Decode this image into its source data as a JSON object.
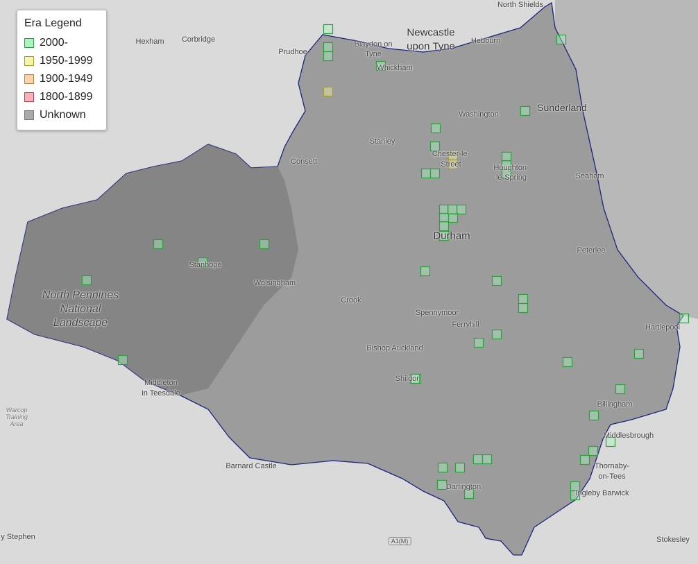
{
  "legend": {
    "title": "Era Legend",
    "items": [
      {
        "label": "2000-",
        "fill": "#a8f5c0",
        "stroke": "#2e9e3e"
      },
      {
        "label": "1950-1999",
        "fill": "#f5f5a8",
        "stroke": "#9e9e2e"
      },
      {
        "label": "1900-1949",
        "fill": "#fcd2a8",
        "stroke": "#b8804a"
      },
      {
        "label": "1800-1899",
        "fill": "#fbb0b8",
        "stroke": "#b04050"
      },
      {
        "label": "Unknown",
        "fill": "#aaaaaa",
        "stroke": "#777777"
      }
    ]
  },
  "colors": {
    "boundary": "#1a237e",
    "region": "#9a9a9a",
    "basemap": "#d9d9d9",
    "sea": "#b5b5b5"
  },
  "places": [
    "North Shields",
    "Newcastle",
    "upon Tyne",
    "Hexham",
    "Corbridge",
    "Prudhoe",
    "Blaydon on",
    "Tyne",
    "Whickham",
    "Hebburn",
    "Sunderland",
    "Washington",
    "Stanley",
    "Chester-le-",
    "Street",
    "Consett",
    "Houghton-",
    "le-Spring",
    "Seaham",
    "Durham",
    "Peterlee",
    "Stanhope",
    "Wolsingham",
    "Crook",
    "Spennymoor",
    "Ferryhill",
    "Hartlepool",
    "Bishop Auckland",
    "Shildon",
    "Billingham",
    "Middleton",
    "in Teesdale",
    "Middlesbrough",
    "Thornaby-",
    "on-Tees",
    "Barnard Castle",
    "Darlington",
    "Ingleby Barwick",
    "Stokesley",
    "y Stephen"
  ],
  "park": {
    "line1": "North Pennines",
    "line2": "National",
    "line3": "Landscape"
  },
  "training": {
    "line1": "Warcop",
    "line2": "Training",
    "line3": "Area"
  },
  "road": "A1(M)",
  "markers": [
    "2000-",
    "2000-",
    "2000-",
    "2000-",
    "2000-",
    "2000-",
    "2000-",
    "2000-",
    "2000-",
    "2000-",
    "2000-",
    "2000-",
    "2000-",
    "2000-",
    "2000-",
    "2000-",
    "2000-",
    "2000-",
    "2000-",
    "2000-",
    "2000-",
    "2000-",
    "2000-",
    "2000-",
    "2000-",
    "2000-",
    "2000-",
    "2000-",
    "2000-",
    "2000-",
    "2000-",
    "2000-",
    "2000-",
    "2000-",
    "2000-",
    "2000-",
    "2000-",
    "2000-",
    "2000-",
    "2000-",
    "2000-",
    "2000-",
    "2000-",
    "2000-",
    "2000-",
    "2000-",
    "2000-",
    "2000-",
    "2000-",
    "1950-1999",
    "1950-1999",
    "1950-1999"
  ]
}
